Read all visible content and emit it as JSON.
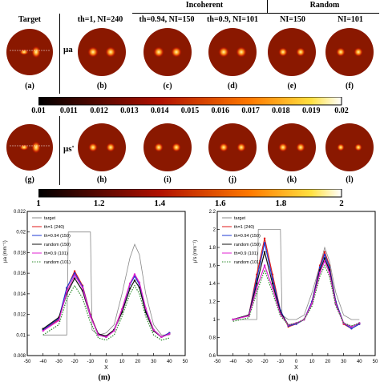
{
  "header": {
    "target": "Target",
    "b": "th=1, NI=240",
    "c": "th=0.94, NI=150",
    "d": "th=0.9, NI=101",
    "e": "NI=150",
    "f": "NI=101",
    "incoherent": "Incoherent",
    "random": "Random"
  },
  "mu_a": "μa",
  "mu_s": "μs'",
  "captions_row1": [
    "(a)",
    "(b)",
    "(c)",
    "(d)",
    "(e)",
    "(f)"
  ],
  "captions_row2": [
    "(g)",
    "(h)",
    "(i)",
    "(j)",
    "(k)",
    "(l)"
  ],
  "colorbar1_ticks": [
    "0.01",
    "0.011",
    "0.012",
    "0.013",
    "0.014",
    "0.015",
    "0.016",
    "0.017",
    "0.018",
    "0.019",
    "0.02"
  ],
  "colorbar2_ticks": [
    "1",
    "1.2",
    "1.4",
    "1.6",
    "1.8",
    "2"
  ],
  "chart_data": [
    {
      "type": "line",
      "caption": "(m)",
      "xlabel": "X",
      "ylabel": "μa (mm⁻¹)",
      "xlim": [
        -50,
        50
      ],
      "ylim": [
        0.008,
        0.022
      ],
      "xticks": [
        "-50",
        "-40",
        "-30",
        "-20",
        "-10",
        "0",
        "10",
        "20",
        "30",
        "40",
        "50"
      ],
      "yticks": [
        "0.008",
        "0.01",
        "0.012",
        "0.014",
        "0.016",
        "0.018",
        "0.02",
        "0.022"
      ],
      "legend": [
        "target",
        "th=1 (240)",
        "th=0.94 (150)",
        "random (150)",
        "th=0.9 (101)",
        "random (101)"
      ],
      "series": [
        {
          "name": "target",
          "x": [
            -40,
            -25,
            -24,
            -10,
            -9,
            -5,
            0,
            5,
            10,
            15,
            18,
            21,
            25,
            30,
            35,
            40
          ],
          "values": [
            0.01,
            0.01,
            0.02,
            0.02,
            0.0105,
            0.01,
            0.0102,
            0.011,
            0.014,
            0.0175,
            0.0188,
            0.0178,
            0.014,
            0.011,
            0.01,
            0.01
          ]
        },
        {
          "name": "th=1 (240)",
          "x": [
            -40,
            -30,
            -25,
            -20,
            -15,
            -10,
            -5,
            0,
            5,
            10,
            15,
            18,
            21,
            25,
            30,
            35,
            40
          ],
          "values": [
            0.0105,
            0.0115,
            0.0145,
            0.0162,
            0.0148,
            0.012,
            0.01,
            0.0098,
            0.0105,
            0.0125,
            0.015,
            0.0158,
            0.015,
            0.0125,
            0.0105,
            0.0098,
            0.0102
          ]
        },
        {
          "name": "th=0.94 (150)",
          "x": [
            -40,
            -30,
            -25,
            -20,
            -15,
            -10,
            -5,
            0,
            5,
            10,
            15,
            18,
            21,
            25,
            30,
            35,
            40
          ],
          "values": [
            0.0105,
            0.0116,
            0.0146,
            0.016,
            0.0147,
            0.0119,
            0.01,
            0.0098,
            0.0105,
            0.0124,
            0.0149,
            0.0157,
            0.0149,
            0.0124,
            0.0105,
            0.0098,
            0.0102
          ]
        },
        {
          "name": "random (150)",
          "x": [
            -40,
            -30,
            -25,
            -20,
            -15,
            -10,
            -5,
            0,
            5,
            10,
            15,
            18,
            21,
            25,
            30,
            35,
            40
          ],
          "values": [
            0.0106,
            0.0117,
            0.014,
            0.0155,
            0.0143,
            0.0118,
            0.0101,
            0.0099,
            0.0105,
            0.0122,
            0.0145,
            0.0153,
            0.0146,
            0.0122,
            0.0104,
            0.0098,
            0.0101
          ]
        },
        {
          "name": "th=0.9 (101)",
          "x": [
            -40,
            -30,
            -25,
            -20,
            -15,
            -10,
            -5,
            0,
            5,
            10,
            15,
            18,
            21,
            25,
            30,
            35,
            40
          ],
          "values": [
            0.0104,
            0.0114,
            0.0142,
            0.0158,
            0.0146,
            0.0118,
            0.01,
            0.0098,
            0.0104,
            0.0125,
            0.015,
            0.0159,
            0.0151,
            0.0126,
            0.0105,
            0.0098,
            0.0101
          ]
        },
        {
          "name": "random (101)",
          "x": [
            -40,
            -30,
            -25,
            -20,
            -15,
            -10,
            -5,
            0,
            5,
            10,
            15,
            18,
            21,
            25,
            30,
            35,
            40
          ],
          "values": [
            0.01,
            0.011,
            0.0135,
            0.0148,
            0.0136,
            0.0112,
            0.0097,
            0.0095,
            0.01,
            0.0118,
            0.014,
            0.0148,
            0.014,
            0.0118,
            0.01,
            0.0095,
            0.0097
          ]
        }
      ]
    },
    {
      "type": "line",
      "caption": "(n)",
      "xlabel": "X",
      "ylabel": "μ's (mm⁻¹)",
      "xlim": [
        -50,
        50
      ],
      "ylim": [
        0.6,
        2.2
      ],
      "xticks": [
        "-50",
        "-40",
        "-30",
        "-20",
        "-10",
        "0",
        "10",
        "20",
        "30",
        "40",
        "50"
      ],
      "yticks": [
        "0.6",
        "0.8",
        "1",
        "1.2",
        "1.4",
        "1.6",
        "1.8",
        "2",
        "2.2"
      ],
      "legend": [
        "target",
        "th=1 (240)",
        "th=0.94 (150)",
        "random (150)",
        "th=0.9 (101)",
        "random (101)"
      ],
      "series": [
        {
          "name": "target",
          "x": [
            -40,
            -25,
            -24,
            -10,
            -9,
            -5,
            0,
            5,
            10,
            15,
            18,
            21,
            25,
            30,
            35,
            40
          ],
          "values": [
            1.0,
            1.0,
            2.0,
            2.0,
            1.05,
            1.0,
            1.0,
            1.05,
            1.3,
            1.6,
            1.8,
            1.65,
            1.3,
            1.05,
            1.0,
            1.0
          ]
        },
        {
          "name": "th=1 (240)",
          "x": [
            -40,
            -30,
            -25,
            -20,
            -15,
            -10,
            -5,
            0,
            5,
            10,
            15,
            18,
            21,
            25,
            30,
            35,
            40
          ],
          "values": [
            1.0,
            1.05,
            1.5,
            1.9,
            1.5,
            1.1,
            0.92,
            0.95,
            1.0,
            1.2,
            1.6,
            1.75,
            1.6,
            1.2,
            0.95,
            0.9,
            0.95
          ]
        },
        {
          "name": "th=0.94 (150)",
          "x": [
            -40,
            -30,
            -25,
            -20,
            -15,
            -10,
            -5,
            0,
            5,
            10,
            15,
            18,
            21,
            25,
            30,
            35,
            40
          ],
          "values": [
            1.0,
            1.05,
            1.45,
            1.85,
            1.45,
            1.1,
            0.93,
            0.95,
            1.0,
            1.2,
            1.58,
            1.72,
            1.58,
            1.2,
            0.96,
            0.9,
            0.95
          ]
        },
        {
          "name": "random (150)",
          "x": [
            -40,
            -30,
            -25,
            -20,
            -15,
            -10,
            -5,
            0,
            5,
            10,
            15,
            18,
            21,
            25,
            30,
            35,
            40
          ],
          "values": [
            1.0,
            1.05,
            1.4,
            1.75,
            1.4,
            1.08,
            0.94,
            0.96,
            1.0,
            1.18,
            1.55,
            1.68,
            1.55,
            1.18,
            0.96,
            0.92,
            0.96
          ]
        },
        {
          "name": "th=0.9 (101)",
          "x": [
            -40,
            -30,
            -25,
            -20,
            -15,
            -10,
            -5,
            0,
            5,
            10,
            15,
            18,
            21,
            25,
            30,
            35,
            40
          ],
          "values": [
            1.0,
            1.04,
            1.35,
            1.6,
            1.35,
            1.06,
            0.94,
            0.96,
            1.0,
            1.18,
            1.52,
            1.65,
            1.52,
            1.17,
            0.96,
            0.92,
            0.96
          ]
        },
        {
          "name": "random (101)",
          "x": [
            -40,
            -30,
            -25,
            -20,
            -15,
            -10,
            -5,
            0,
            5,
            10,
            15,
            18,
            21,
            25,
            30,
            35,
            40
          ],
          "values": [
            0.98,
            1.02,
            1.3,
            1.55,
            1.3,
            1.04,
            0.94,
            0.96,
            1.0,
            1.15,
            1.48,
            1.6,
            1.48,
            1.15,
            0.96,
            0.93,
            0.96
          ]
        }
      ]
    }
  ],
  "colors": {
    "target": "#888888",
    "s1": "#e01a1a",
    "s2": "#1f3ad6",
    "s3": "#111111",
    "s4": "#e020d0",
    "s5": "#2a8a2a"
  }
}
